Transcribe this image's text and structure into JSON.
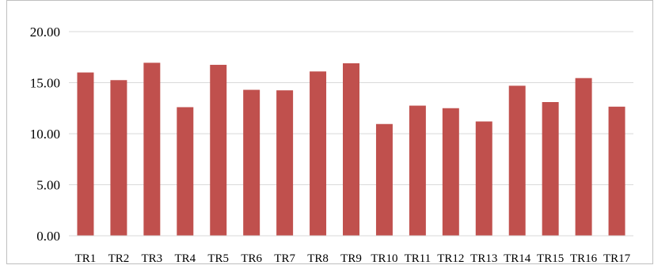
{
  "chart_data": {
    "type": "bar",
    "title": "",
    "xlabel": "",
    "ylabel": "",
    "categories": [
      "TR1",
      "TR2",
      "TR3",
      "TR4",
      "TR5",
      "TR6",
      "TR7",
      "TR8",
      "TR9",
      "TR10",
      "TR11",
      "TR12",
      "TR13",
      "TR14",
      "TR15",
      "TR16",
      "TR17"
    ],
    "values": [
      16.0,
      15.25,
      16.95,
      12.6,
      16.75,
      14.3,
      14.25,
      16.1,
      16.9,
      10.95,
      12.75,
      12.5,
      11.2,
      14.7,
      13.1,
      15.45,
      12.65
    ],
    "ylim": [
      0,
      20
    ],
    "yticks": [
      "0.00",
      "5.00",
      "10.00",
      "15.00",
      "20.00"
    ],
    "grid": true,
    "bar_color": "#c0504d",
    "grid_color": "#d9d9d9",
    "border_color": "#bfbfbf"
  }
}
